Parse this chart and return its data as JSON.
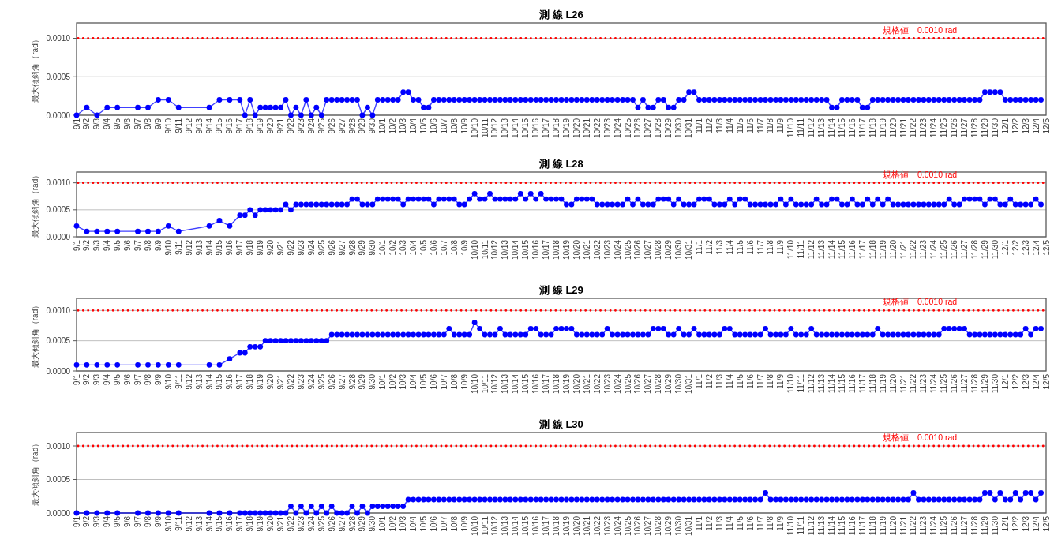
{
  "chart_data": [
    {
      "type": "line",
      "title": "測 線 L26",
      "ylabel": "最大傾斜角（rad）",
      "ylim": [
        0,
        0.0012
      ],
      "yticks": [
        {
          "value": 0,
          "label": "0.0000"
        },
        {
          "value": 0.0005,
          "label": "0.0005"
        },
        {
          "value": 0.001,
          "label": "0.0010"
        }
      ],
      "grid": "y",
      "marker": "circle",
      "line_style": "solid",
      "ref_lines": [
        {
          "axis": "y",
          "value": 0.001,
          "label": "規格値　0.0010 rad",
          "color": "#ff0000",
          "line_style": "dotted"
        }
      ],
      "categories": [
        "9/1",
        null,
        "9/2",
        null,
        "9/3",
        null,
        "9/4",
        null,
        "9/5",
        null,
        "9/6",
        null,
        "9/7",
        null,
        "9/8",
        null,
        "9/9",
        null,
        "9/10",
        null,
        "9/11",
        null,
        "9/12",
        null,
        "9/13",
        null,
        "9/14",
        null,
        "9/15",
        null,
        "9/16",
        null,
        "9/17",
        null,
        "9/18",
        null,
        "9/19",
        null,
        "9/20",
        null,
        "9/21",
        null,
        "9/22",
        null,
        "9/23",
        null,
        "9/24",
        null,
        "9/25",
        null,
        "9/26",
        null,
        "9/27",
        null,
        "9/28",
        null,
        "9/29",
        null,
        "9/30",
        null,
        "10/1",
        null,
        "10/2",
        null,
        "10/3",
        null,
        "10/4",
        null,
        "10/5",
        null,
        "10/6",
        null,
        "10/7",
        null,
        "10/8",
        null,
        "10/9",
        null,
        "10/10",
        null,
        "10/11",
        null,
        "10/12",
        null,
        "10/13",
        null,
        "10/14",
        null,
        "10/15",
        null,
        "10/16",
        null,
        "10/17",
        null,
        "10/18",
        null,
        "10/19",
        null,
        "10/20",
        null,
        "10/21",
        null,
        "10/22",
        null,
        "10/23",
        null,
        "10/24",
        null,
        "10/25",
        null,
        "10/26",
        null,
        "10/27",
        null,
        "10/28",
        null,
        "10/29",
        null,
        "10/30",
        null,
        "10/31",
        null,
        "11/1",
        null,
        "11/2",
        null,
        "11/3",
        null,
        "11/4",
        null,
        "11/5",
        null,
        "11/6",
        null,
        "11/7",
        null,
        "11/8",
        null,
        "11/9",
        null,
        "11/10",
        null,
        "11/11",
        null,
        "11/12",
        null,
        "11/13",
        null,
        "11/14",
        null,
        "11/15",
        null,
        "11/16",
        null,
        "11/17",
        null,
        "11/18",
        null,
        "11/19",
        null,
        "11/20",
        null,
        "11/21",
        null,
        "11/22",
        null,
        "11/23",
        null,
        "11/24",
        null,
        "11/25",
        null,
        "11/26",
        null,
        "11/27",
        null,
        "11/28",
        null,
        "11/29",
        null,
        "11/30",
        null,
        "12/1",
        null,
        "12/2",
        null,
        "12/3",
        null,
        "12/4",
        null,
        "12/5"
      ],
      "series": [
        {
          "color": "#0000ff",
          "values": [
            0,
            null,
            0.0001,
            null,
            0,
            null,
            0.0001,
            null,
            0.0001,
            null,
            null,
            null,
            0.0001,
            null,
            0.0001,
            null,
            0.0002,
            null,
            0.0002,
            null,
            0.0001,
            null,
            null,
            null,
            null,
            null,
            0.0001,
            null,
            0.0002,
            null,
            0.0002,
            null,
            0.0002,
            0,
            0.0002,
            0,
            0.0001,
            0.0001,
            0.0001,
            0.0001,
            0.0001,
            0.0002,
            0,
            0.0001,
            0,
            0.0002,
            0,
            0.0001,
            0,
            0.0002,
            0.0002,
            0.0002,
            0.0002,
            0.0002,
            0.0002,
            0.0002,
            0,
            0.0001,
            0,
            0.0002,
            0.0002,
            0.0002,
            0.0002,
            0.0002,
            0.0003,
            0.0003,
            0.0002,
            0.0002,
            0.0001,
            0.0001,
            0.0002,
            0.0002,
            0.0002,
            0.0002,
            0.0002,
            0.0002,
            0.0002,
            0.0002,
            0.0002,
            0.0002,
            0.0002,
            0.0002,
            0.0002,
            0.0002,
            0.0002,
            0.0002,
            0.0002,
            0.0002,
            0.0002,
            0.0002,
            0.0002,
            0.0002,
            0.0002,
            0.0002,
            0.0002,
            0.0002,
            0.0002,
            0.0002,
            0.0002,
            0.0002,
            0.0002,
            0.0002,
            0.0002,
            0.0002,
            0.0002,
            0.0002,
            0.0002,
            0.0002,
            0.0002,
            0.0002,
            0.0001,
            0.0002,
            0.0001,
            0.0001,
            0.0002,
            0.0002,
            0.0001,
            0.0001,
            0.0002,
            0.0002,
            0.0003,
            0.0003,
            0.0002,
            0.0002,
            0.0002,
            0.0002,
            0.0002,
            0.0002,
            0.0002,
            0.0002,
            0.0002,
            0.0002,
            0.0002,
            0.0002,
            0.0002,
            0.0002,
            0.0002,
            0.0002,
            0.0002,
            0.0002,
            0.0002,
            0.0002,
            0.0002,
            0.0002,
            0.0002,
            0.0002,
            0.0002,
            0.0002,
            0.0001,
            0.0001,
            0.0002,
            0.0002,
            0.0002,
            0.0002,
            0.0001,
            0.0001,
            0.0002,
            0.0002,
            0.0002,
            0.0002,
            0.0002,
            0.0002,
            0.0002,
            0.0002,
            0.0002,
            0.0002,
            0.0002,
            0.0002,
            0.0002,
            0.0002,
            0.0002,
            0.0002,
            0.0002,
            0.0002,
            0.0002,
            0.0002,
            0.0002,
            0.0002,
            0.0003,
            0.0003,
            0.0003,
            0.0003,
            0.0002,
            0.0002,
            0.0002,
            0.0002,
            0.0002,
            0.0002,
            0.0002,
            0.0002,
            null
          ]
        }
      ]
    },
    {
      "type": "line",
      "title": "測 線 L28",
      "ylabel": "最大傾斜角（rad）",
      "ylim": [
        0,
        0.0012
      ],
      "yticks": [
        {
          "value": 0,
          "label": "0.0000"
        },
        {
          "value": 0.0005,
          "label": "0.0005"
        },
        {
          "value": 0.001,
          "label": "0.0010"
        }
      ],
      "grid": "y",
      "marker": "circle",
      "line_style": "solid",
      "ref_lines": [
        {
          "axis": "y",
          "value": 0.001,
          "label": "規格値　0.0010 rad",
          "color": "#ff0000",
          "line_style": "dotted"
        }
      ],
      "categories": [
        "9/1",
        null,
        "9/2",
        null,
        "9/3",
        null,
        "9/4",
        null,
        "9/5",
        null,
        "9/6",
        null,
        "9/7",
        null,
        "9/8",
        null,
        "9/9",
        null,
        "9/10",
        null,
        "9/11",
        null,
        "9/12",
        null,
        "9/13",
        null,
        "9/14",
        null,
        "9/15",
        null,
        "9/16",
        null,
        "9/17",
        null,
        "9/18",
        null,
        "9/19",
        null,
        "9/20",
        null,
        "9/21",
        null,
        "9/22",
        null,
        "9/23",
        null,
        "9/24",
        null,
        "9/25",
        null,
        "9/26",
        null,
        "9/27",
        null,
        "9/28",
        null,
        "9/29",
        null,
        "9/30",
        null,
        "10/1",
        null,
        "10/2",
        null,
        "10/3",
        null,
        "10/4",
        null,
        "10/5",
        null,
        "10/6",
        null,
        "10/7",
        null,
        "10/8",
        null,
        "10/9",
        null,
        "10/10",
        null,
        "10/11",
        null,
        "10/12",
        null,
        "10/13",
        null,
        "10/14",
        null,
        "10/15",
        null,
        "10/16",
        null,
        "10/17",
        null,
        "10/18",
        null,
        "10/19",
        null,
        "10/20",
        null,
        "10/21",
        null,
        "10/22",
        null,
        "10/23",
        null,
        "10/24",
        null,
        "10/25",
        null,
        "10/26",
        null,
        "10/27",
        null,
        "10/28",
        null,
        "10/29",
        null,
        "10/30",
        null,
        "10/31",
        null,
        "11/1",
        null,
        "11/2",
        null,
        "11/3",
        null,
        "11/4",
        null,
        "11/5",
        null,
        "11/6",
        null,
        "11/7",
        null,
        "11/8",
        null,
        "11/9",
        null,
        "11/10",
        null,
        "11/11",
        null,
        "11/12",
        null,
        "11/13",
        null,
        "11/14",
        null,
        "11/15",
        null,
        "11/16",
        null,
        "11/17",
        null,
        "11/18",
        null,
        "11/19",
        null,
        "11/20",
        null,
        "11/21",
        null,
        "11/22",
        null,
        "11/23",
        null,
        "11/24",
        null,
        "11/25",
        null,
        "11/26",
        null,
        "11/27",
        null,
        "11/28",
        null,
        "11/29",
        null,
        "11/30",
        null,
        "12/1",
        null,
        "12/2",
        null,
        "12/3",
        null,
        "12/4",
        null,
        "12/5"
      ],
      "series": [
        {
          "color": "#0000ff",
          "values": [
            0.0002,
            null,
            0.0001,
            null,
            0.0001,
            null,
            0.0001,
            null,
            0.0001,
            null,
            null,
            null,
            0.0001,
            null,
            0.0001,
            null,
            0.0001,
            null,
            0.0002,
            null,
            0.0001,
            null,
            null,
            null,
            null,
            null,
            0.0002,
            null,
            0.0003,
            null,
            0.0002,
            null,
            0.0004,
            0.0004,
            0.0005,
            0.0004,
            0.0005,
            0.0005,
            0.0005,
            0.0005,
            0.0005,
            0.0006,
            0.0005,
            0.0006,
            0.0006,
            0.0006,
            0.0006,
            0.0006,
            0.0006,
            0.0006,
            0.0006,
            0.0006,
            0.0006,
            0.0006,
            0.0007,
            0.0007,
            0.0006,
            0.0006,
            0.0006,
            0.0007,
            0.0007,
            0.0007,
            0.0007,
            0.0007,
            0.0006,
            0.0007,
            0.0007,
            0.0007,
            0.0007,
            0.0007,
            0.0006,
            0.0007,
            0.0007,
            0.0007,
            0.0007,
            0.0006,
            0.0006,
            0.0007,
            0.0008,
            0.0007,
            0.0007,
            0.0008,
            0.0007,
            0.0007,
            0.0007,
            0.0007,
            0.0007,
            0.0008,
            0.0007,
            0.0008,
            0.0007,
            0.0008,
            0.0007,
            0.0007,
            0.0007,
            0.0007,
            0.0006,
            0.0006,
            0.0007,
            0.0007,
            0.0007,
            0.0007,
            0.0006,
            0.0006,
            0.0006,
            0.0006,
            0.0006,
            0.0006,
            0.0007,
            0.0006,
            0.0007,
            0.0006,
            0.0006,
            0.0006,
            0.0007,
            0.0007,
            0.0007,
            0.0006,
            0.0007,
            0.0006,
            0.0006,
            0.0006,
            0.0007,
            0.0007,
            0.0007,
            0.0006,
            0.0006,
            0.0006,
            0.0007,
            0.0006,
            0.0007,
            0.0007,
            0.0006,
            0.0006,
            0.0006,
            0.0006,
            0.0006,
            0.0006,
            0.0007,
            0.0006,
            0.0007,
            0.0006,
            0.0006,
            0.0006,
            0.0006,
            0.0007,
            0.0006,
            0.0006,
            0.0007,
            0.0007,
            0.0006,
            0.0006,
            0.0007,
            0.0006,
            0.0006,
            0.0007,
            0.0006,
            0.0007,
            0.0006,
            0.0007,
            0.0006,
            0.0006,
            0.0006,
            0.0006,
            0.0006,
            0.0006,
            0.0006,
            0.0006,
            0.0006,
            0.0006,
            0.0006,
            0.0007,
            0.0006,
            0.0006,
            0.0007,
            0.0007,
            0.0007,
            0.0007,
            0.0006,
            0.0007,
            0.0007,
            0.0006,
            0.0006,
            0.0007,
            0.0006,
            0.0006,
            0.0006,
            0.0006,
            0.0007,
            0.0006,
            null
          ]
        }
      ]
    },
    {
      "type": "line",
      "title": "測 線 L29",
      "ylabel": "最大傾斜角（rad）",
      "ylim": [
        0,
        0.0012
      ],
      "yticks": [
        {
          "value": 0,
          "label": "0.0000"
        },
        {
          "value": 0.0005,
          "label": "0.0005"
        },
        {
          "value": 0.001,
          "label": "0.0010"
        }
      ],
      "grid": "y",
      "marker": "circle",
      "line_style": "solid",
      "ref_lines": [
        {
          "axis": "y",
          "value": 0.001,
          "label": "規格値　0.0010 rad",
          "color": "#ff0000",
          "line_style": "dotted"
        }
      ],
      "categories": [
        "9/1",
        null,
        "9/2",
        null,
        "9/3",
        null,
        "9/4",
        null,
        "9/5",
        null,
        "9/6",
        null,
        "9/7",
        null,
        "9/8",
        null,
        "9/9",
        null,
        "9/10",
        null,
        "9/11",
        null,
        "9/12",
        null,
        "9/13",
        null,
        "9/14",
        null,
        "9/15",
        null,
        "9/16",
        null,
        "9/17",
        null,
        "9/18",
        null,
        "9/19",
        null,
        "9/20",
        null,
        "9/21",
        null,
        "9/22",
        null,
        "9/23",
        null,
        "9/24",
        null,
        "9/25",
        null,
        "9/26",
        null,
        "9/27",
        null,
        "9/28",
        null,
        "9/29",
        null,
        "9/30",
        null,
        "10/1",
        null,
        "10/2",
        null,
        "10/3",
        null,
        "10/4",
        null,
        "10/5",
        null,
        "10/6",
        null,
        "10/7",
        null,
        "10/8",
        null,
        "10/9",
        null,
        "10/10",
        null,
        "10/11",
        null,
        "10/12",
        null,
        "10/13",
        null,
        "10/14",
        null,
        "10/15",
        null,
        "10/16",
        null,
        "10/17",
        null,
        "10/18",
        null,
        "10/19",
        null,
        "10/20",
        null,
        "10/21",
        null,
        "10/22",
        null,
        "10/23",
        null,
        "10/24",
        null,
        "10/25",
        null,
        "10/26",
        null,
        "10/27",
        null,
        "10/28",
        null,
        "10/29",
        null,
        "10/30",
        null,
        "10/31",
        null,
        "11/1",
        null,
        "11/2",
        null,
        "11/3",
        null,
        "11/4",
        null,
        "11/5",
        null,
        "11/6",
        null,
        "11/7",
        null,
        "11/8",
        null,
        "11/9",
        null,
        "11/10",
        null,
        "11/11",
        null,
        "11/12",
        null,
        "11/13",
        null,
        "11/14",
        null,
        "11/15",
        null,
        "11/16",
        null,
        "11/17",
        null,
        "11/18",
        null,
        "11/19",
        null,
        "11/20",
        null,
        "11/21",
        null,
        "11/22",
        null,
        "11/23",
        null,
        "11/24",
        null,
        "11/25",
        null,
        "11/26",
        null,
        "11/27",
        null,
        "11/28",
        null,
        "11/29",
        null,
        "11/30",
        null,
        "12/1",
        null,
        "12/2",
        null,
        "12/3",
        null,
        "12/4",
        null,
        "12/5"
      ],
      "series": [
        {
          "color": "#0000ff",
          "values": [
            0.0001,
            null,
            0.0001,
            null,
            0.0001,
            null,
            0.0001,
            null,
            0.0001,
            null,
            null,
            null,
            0.0001,
            null,
            0.0001,
            null,
            0.0001,
            null,
            0.0001,
            null,
            0.0001,
            null,
            null,
            null,
            null,
            null,
            0.0001,
            null,
            0.0001,
            null,
            0.0002,
            null,
            0.0003,
            0.0003,
            0.0004,
            0.0004,
            0.0004,
            0.0005,
            0.0005,
            0.0005,
            0.0005,
            0.0005,
            0.0005,
            0.0005,
            0.0005,
            0.0005,
            0.0005,
            0.0005,
            0.0005,
            0.0005,
            0.0006,
            0.0006,
            0.0006,
            0.0006,
            0.0006,
            0.0006,
            0.0006,
            0.0006,
            0.0006,
            0.0006,
            0.0006,
            0.0006,
            0.0006,
            0.0006,
            0.0006,
            0.0006,
            0.0006,
            0.0006,
            0.0006,
            0.0006,
            0.0006,
            0.0006,
            0.0006,
            0.0007,
            0.0006,
            0.0006,
            0.0006,
            0.0006,
            0.0008,
            0.0007,
            0.0006,
            0.0006,
            0.0006,
            0.0007,
            0.0006,
            0.0006,
            0.0006,
            0.0006,
            0.0006,
            0.0007,
            0.0007,
            0.0006,
            0.0006,
            0.0006,
            0.0007,
            0.0007,
            0.0007,
            0.0007,
            0.0006,
            0.0006,
            0.0006,
            0.0006,
            0.0006,
            0.0006,
            0.0007,
            0.0006,
            0.0006,
            0.0006,
            0.0006,
            0.0006,
            0.0006,
            0.0006,
            0.0006,
            0.0007,
            0.0007,
            0.0007,
            0.0006,
            0.0006,
            0.0007,
            0.0006,
            0.0006,
            0.0007,
            0.0006,
            0.0006,
            0.0006,
            0.0006,
            0.0006,
            0.0007,
            0.0007,
            0.0006,
            0.0006,
            0.0006,
            0.0006,
            0.0006,
            0.0006,
            0.0007,
            0.0006,
            0.0006,
            0.0006,
            0.0006,
            0.0007,
            0.0006,
            0.0006,
            0.0006,
            0.0007,
            0.0006,
            0.0006,
            0.0006,
            0.0006,
            0.0006,
            0.0006,
            0.0006,
            0.0006,
            0.0006,
            0.0006,
            0.0006,
            0.0006,
            0.0007,
            0.0006,
            0.0006,
            0.0006,
            0.0006,
            0.0006,
            0.0006,
            0.0006,
            0.0006,
            0.0006,
            0.0006,
            0.0006,
            0.0006,
            0.0007,
            0.0007,
            0.0007,
            0.0007,
            0.0007,
            0.0006,
            0.0006,
            0.0006,
            0.0006,
            0.0006,
            0.0006,
            0.0006,
            0.0006,
            0.0006,
            0.0006,
            0.0006,
            0.0007,
            0.0006,
            0.0007,
            0.0007,
            null
          ]
        }
      ]
    },
    {
      "type": "line",
      "title": "測 線 L30",
      "ylabel": "最大傾斜角（rad）",
      "ylim": [
        0,
        0.0012
      ],
      "yticks": [
        {
          "value": 0,
          "label": "0.0000"
        },
        {
          "value": 0.0005,
          "label": "0.0005"
        },
        {
          "value": 0.001,
          "label": "0.0010"
        }
      ],
      "grid": "y",
      "marker": "circle",
      "line_style": "solid",
      "ref_lines": [
        {
          "axis": "y",
          "value": 0.001,
          "label": "規格値　0.0010 rad",
          "color": "#ff0000",
          "line_style": "dotted"
        }
      ],
      "categories": [
        "9/1",
        null,
        "9/2",
        null,
        "9/3",
        null,
        "9/4",
        null,
        "9/5",
        null,
        "9/6",
        null,
        "9/7",
        null,
        "9/8",
        null,
        "9/9",
        null,
        "9/10",
        null,
        "9/11",
        null,
        "9/12",
        null,
        "9/13",
        null,
        "9/14",
        null,
        "9/15",
        null,
        "9/16",
        null,
        "9/17",
        null,
        "9/18",
        null,
        "9/19",
        null,
        "9/20",
        null,
        "9/21",
        null,
        "9/22",
        null,
        "9/23",
        null,
        "9/24",
        null,
        "9/25",
        null,
        "9/26",
        null,
        "9/27",
        null,
        "9/28",
        null,
        "9/29",
        null,
        "9/30",
        null,
        "10/1",
        null,
        "10/2",
        null,
        "10/3",
        null,
        "10/4",
        null,
        "10/5",
        null,
        "10/6",
        null,
        "10/7",
        null,
        "10/8",
        null,
        "10/9",
        null,
        "10/10",
        null,
        "10/11",
        null,
        "10/12",
        null,
        "10/13",
        null,
        "10/14",
        null,
        "10/15",
        null,
        "10/16",
        null,
        "10/17",
        null,
        "10/18",
        null,
        "10/19",
        null,
        "10/20",
        null,
        "10/21",
        null,
        "10/22",
        null,
        "10/23",
        null,
        "10/24",
        null,
        "10/25",
        null,
        "10/26",
        null,
        "10/27",
        null,
        "10/28",
        null,
        "10/29",
        null,
        "10/30",
        null,
        "10/31",
        null,
        "11/1",
        null,
        "11/2",
        null,
        "11/3",
        null,
        "11/4",
        null,
        "11/5",
        null,
        "11/6",
        null,
        "11/7",
        null,
        "11/8",
        null,
        "11/9",
        null,
        "11/10",
        null,
        "11/11",
        null,
        "11/12",
        null,
        "11/13",
        null,
        "11/14",
        null,
        "11/15",
        null,
        "11/16",
        null,
        "11/17",
        null,
        "11/18",
        null,
        "11/19",
        null,
        "11/20",
        null,
        "11/21",
        null,
        "11/22",
        null,
        "11/23",
        null,
        "11/24",
        null,
        "11/25",
        null,
        "11/26",
        null,
        "11/27",
        null,
        "11/28",
        null,
        "11/29",
        null,
        "11/30",
        null,
        "12/1",
        null,
        "12/2",
        null,
        "12/3",
        null,
        "12/4",
        null,
        "12/5"
      ],
      "series": [
        {
          "color": "#0000ff",
          "values": [
            0,
            null,
            0,
            null,
            0,
            null,
            0,
            null,
            0,
            null,
            null,
            null,
            0,
            null,
            0,
            null,
            0,
            null,
            0,
            null,
            0,
            null,
            null,
            null,
            null,
            null,
            0,
            null,
            0,
            null,
            0,
            null,
            0,
            0,
            0,
            0,
            0,
            0,
            0,
            0,
            0,
            0,
            0.0001,
            0,
            0.0001,
            0,
            0.0001,
            0,
            0.0001,
            0,
            0.0001,
            0,
            0,
            0,
            0.0001,
            0,
            0.0001,
            0,
            0.0001,
            0.0001,
            0.0001,
            0.0001,
            0.0001,
            0.0001,
            0.0001,
            0.0002,
            0.0002,
            0.0002,
            0.0002,
            0.0002,
            0.0002,
            0.0002,
            0.0002,
            0.0002,
            0.0002,
            0.0002,
            0.0002,
            0.0002,
            0.0002,
            0.0002,
            0.0002,
            0.0002,
            0.0002,
            0.0002,
            0.0002,
            0.0002,
            0.0002,
            0.0002,
            0.0002,
            0.0002,
            0.0002,
            0.0002,
            0.0002,
            0.0002,
            0.0002,
            0.0002,
            0.0002,
            0.0002,
            0.0002,
            0.0002,
            0.0002,
            0.0002,
            0.0002,
            0.0002,
            0.0002,
            0.0002,
            0.0002,
            0.0002,
            0.0002,
            0.0002,
            0.0002,
            0.0002,
            0.0002,
            0.0002,
            0.0002,
            0.0002,
            0.0002,
            0.0002,
            0.0002,
            0.0002,
            0.0002,
            0.0002,
            0.0002,
            0.0002,
            0.0002,
            0.0002,
            0.0002,
            0.0002,
            0.0002,
            0.0002,
            0.0002,
            0.0002,
            0.0002,
            0.0002,
            0.0002,
            0.0003,
            0.0002,
            0.0002,
            0.0002,
            0.0002,
            0.0002,
            0.0002,
            0.0002,
            0.0002,
            0.0002,
            0.0002,
            0.0002,
            0.0002,
            0.0002,
            0.0002,
            0.0002,
            0.0002,
            0.0002,
            0.0002,
            0.0002,
            0.0002,
            0.0002,
            0.0002,
            0.0002,
            0.0002,
            0.0002,
            0.0002,
            0.0002,
            0.0002,
            0.0003,
            0.0002,
            0.0002,
            0.0002,
            0.0002,
            0.0002,
            0.0002,
            0.0002,
            0.0002,
            0.0002,
            0.0002,
            0.0002,
            0.0002,
            0.0002,
            0.0003,
            0.0003,
            0.0002,
            0.0003,
            0.0002,
            0.0002,
            0.0003,
            0.0002,
            0.0003,
            0.0003,
            0.0002,
            0.0003,
            null
          ]
        }
      ]
    }
  ]
}
